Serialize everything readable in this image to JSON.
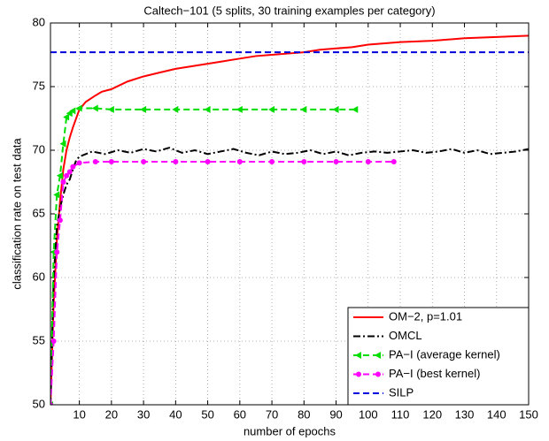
{
  "chart_data": {
    "type": "line",
    "title": "Caltech−101 (5 splits, 30 training examples per category)",
    "x_label": "number of epochs",
    "y_label": "classification rate on test data",
    "xlim": [
      1,
      150
    ],
    "ylim": [
      50,
      80
    ],
    "xticks": [
      10,
      20,
      30,
      40,
      50,
      60,
      70,
      80,
      90,
      100,
      110,
      120,
      130,
      140,
      150
    ],
    "yticks": [
      50,
      55,
      60,
      65,
      70,
      75,
      80
    ],
    "grid": true,
    "legend": "lower right",
    "series": [
      {
        "name": "OM−2, p=1.01",
        "color": "#ff0000",
        "style": "solid",
        "x": [
          1,
          2,
          3,
          4,
          5,
          6,
          7,
          8,
          9,
          10,
          12,
          15,
          17,
          20,
          25,
          30,
          35,
          40,
          45,
          50,
          55,
          60,
          65,
          70,
          75,
          80,
          85,
          90,
          95,
          100,
          110,
          120,
          130,
          140,
          150
        ],
        "values": [
          50,
          58,
          63,
          66,
          68.5,
          70,
          71,
          71.8,
          72.5,
          73.2,
          73.8,
          74.3,
          74.6,
          74.8,
          75.4,
          75.8,
          76.1,
          76.4,
          76.6,
          76.8,
          77,
          77.2,
          77.4,
          77.5,
          77.6,
          77.7,
          77.9,
          78,
          78.1,
          78.3,
          78.5,
          78.6,
          78.8,
          78.9,
          79
        ]
      },
      {
        "name": "OMCL",
        "color": "#000000",
        "style": "dashdot",
        "x": [
          1,
          2,
          3,
          4,
          5,
          6,
          7,
          8,
          9,
          10,
          14,
          18,
          22,
          26,
          30,
          34,
          38,
          42,
          46,
          50,
          54,
          58,
          62,
          66,
          70,
          74,
          78,
          82,
          86,
          90,
          94,
          98,
          102,
          106,
          110,
          114,
          118,
          122,
          126,
          130,
          134,
          138,
          142,
          146,
          150
        ],
        "values": [
          50,
          60,
          64,
          65.5,
          66.5,
          67.3,
          67.7,
          68.5,
          69.2,
          69.5,
          69.9,
          69.7,
          70.0,
          69.8,
          70.1,
          69.9,
          70.2,
          69.8,
          70.0,
          69.7,
          69.9,
          70.1,
          69.8,
          69.6,
          69.9,
          69.7,
          69.8,
          70.0,
          69.7,
          69.9,
          69.6,
          69.8,
          69.9,
          69.8,
          69.9,
          70.0,
          69.8,
          69.9,
          70.1,
          69.8,
          70.0,
          69.7,
          69.8,
          69.9,
          70.1
        ]
      },
      {
        "name": "PA−I (average kernel)",
        "color": "#00dd00",
        "style": "dashed",
        "marker": "triangle-left",
        "x": [
          1,
          2,
          3,
          4,
          5,
          6,
          7,
          8,
          10,
          15,
          20,
          30,
          40,
          50,
          60,
          70,
          80,
          90,
          96
        ],
        "values": [
          50,
          62,
          66.5,
          68,
          70.5,
          72.6,
          72.9,
          73.1,
          73.3,
          73.3,
          73.2,
          73.2,
          73.2,
          73.2,
          73.2,
          73.2,
          73.2,
          73.2,
          73.2
        ]
      },
      {
        "name": "PA−I (best kernel)",
        "color": "#ff00ff",
        "style": "dashed",
        "marker": "circle",
        "x": [
          1,
          2,
          3,
          4,
          5,
          6,
          7,
          8,
          10,
          15,
          20,
          30,
          40,
          50,
          60,
          70,
          80,
          90,
          100,
          108
        ],
        "values": [
          50,
          55,
          62,
          64.5,
          67.5,
          68,
          68.3,
          68.7,
          69,
          69.1,
          69.1,
          69.1,
          69.1,
          69.1,
          69.1,
          69.1,
          69.1,
          69.1,
          69.1,
          69.1
        ]
      },
      {
        "name": "SILP",
        "color": "#0000dd",
        "style": "dashed",
        "x": [
          1,
          150
        ],
        "values": [
          77.7,
          77.7
        ]
      }
    ]
  }
}
